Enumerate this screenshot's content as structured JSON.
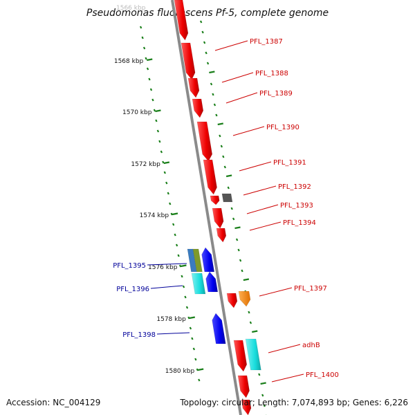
{
  "title": "Pseudomonas fluorescens Pf-5, complete genome",
  "footer": {
    "accession": "Accession: NC_004129",
    "topology": "Topology: circular; Length: 7,074,893 bp; Genes: 6,226"
  },
  "scale": {
    "labels": [
      "1568 kbp",
      "1570 kbp",
      "1572 kbp",
      "1574 kbp",
      "1576 kbp",
      "1578 kbp",
      "1580 kbp"
    ],
    "faded_top_label": "1566 kbp"
  },
  "colors": {
    "forward": "#ff1a1a",
    "reverse": "#1a1aff",
    "cyan": "#19dede",
    "orange": "#ff8c1a",
    "gray": "#555555",
    "steel": "#3a7bbf",
    "olive": "#7f9a2a",
    "backbone": "#8a8a8a",
    "ticks": "#1a7f1a",
    "fwd_label": "#cc0000",
    "rev_label": "#000099"
  },
  "genes": [
    {
      "id": "PFL_1387"
    },
    {
      "id": "PFL_1388"
    },
    {
      "id": "PFL_1389"
    },
    {
      "id": "PFL_1390"
    },
    {
      "id": "PFL_1391"
    },
    {
      "id": "PFL_1392"
    },
    {
      "id": "PFL_1393"
    },
    {
      "id": "PFL_1394"
    },
    {
      "id": "PFL_1395"
    },
    {
      "id": "PFL_1396"
    },
    {
      "id": "PFL_1397"
    },
    {
      "id": "PFL_1398"
    },
    {
      "id": "adhB"
    },
    {
      "id": "PFL_1400"
    }
  ]
}
